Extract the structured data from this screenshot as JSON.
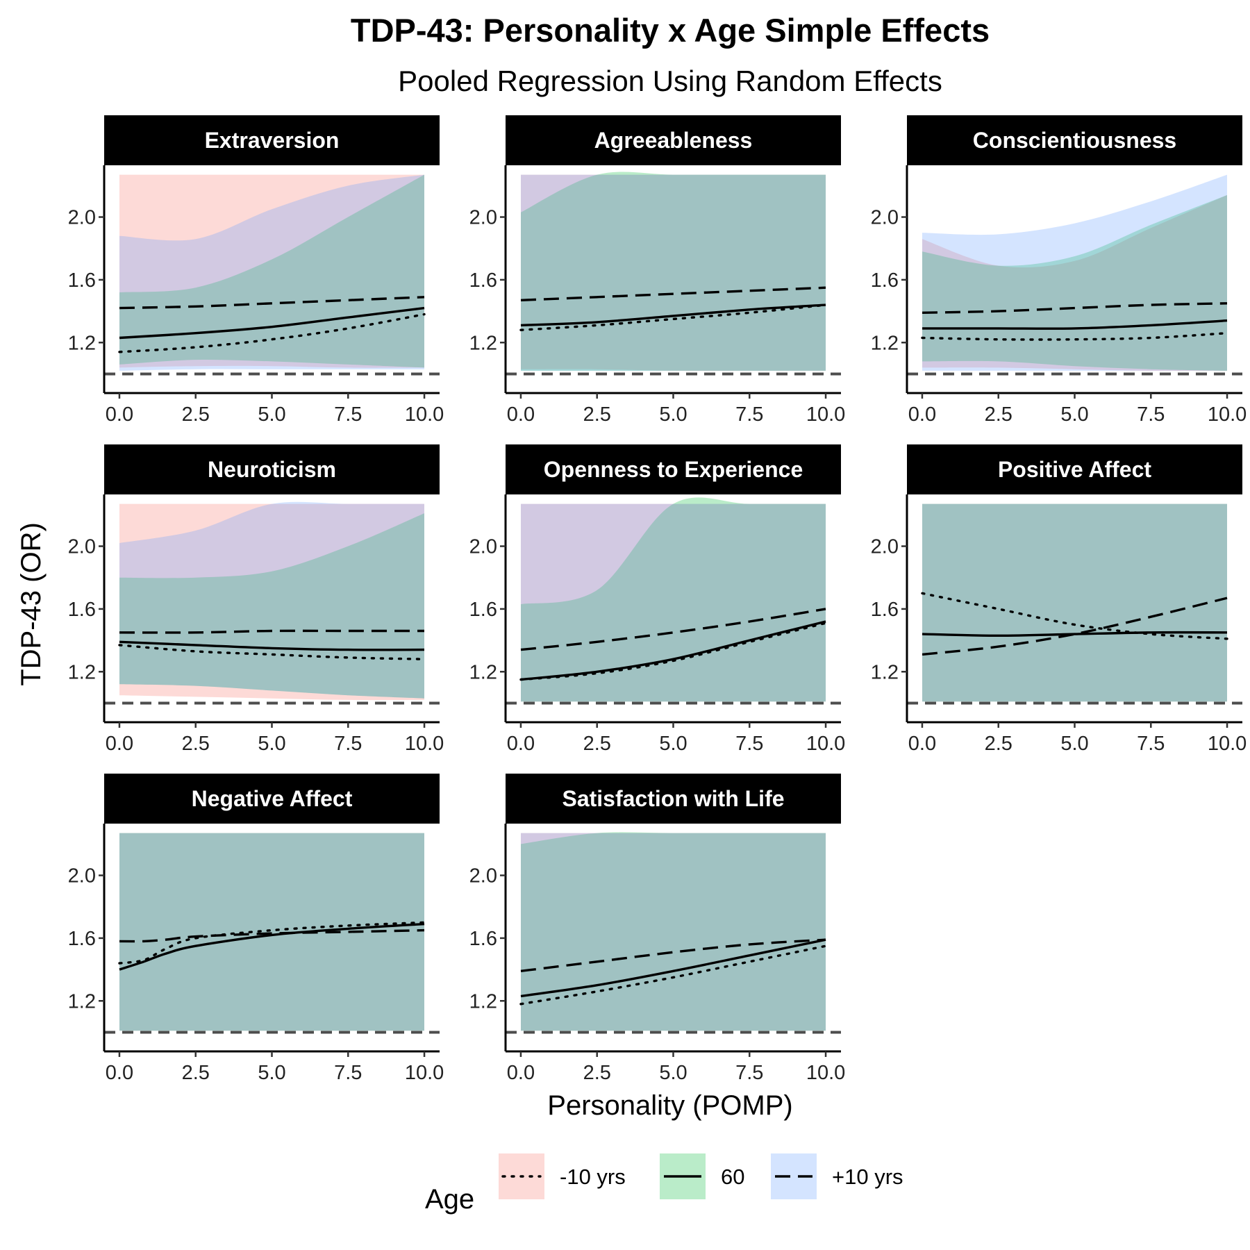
{
  "chart_data": {
    "type": "line",
    "title": "TDP-43: Personality x Age Simple Effects",
    "subtitle": "Pooled Regression Using Random Effects",
    "xlabel": "Personality (POMP)",
    "ylabel": "TDP-43 (OR)",
    "xlim": [
      -0.5,
      10.5
    ],
    "ylim": [
      0.94,
      2.33
    ],
    "xticks": [
      "0.0",
      "2.5",
      "5.0",
      "7.5",
      "10.0"
    ],
    "yticks": [
      "1.2",
      "1.6",
      "2.0"
    ],
    "reference_line": 1.0,
    "grid": false,
    "legend": {
      "title": "Age",
      "position": "bottom",
      "entries": [
        {
          "label": "-10 yrs",
          "linetype": "dotted",
          "fill": "#F8766D"
        },
        {
          "label": "60",
          "linetype": "solid",
          "fill": "#00BA38"
        },
        {
          "label": "+10 yrs",
          "linetype": "dashed",
          "fill": "#619CFF"
        }
      ]
    },
    "panels": [
      {
        "name": "Extraversion",
        "x": [
          0,
          2.5,
          5,
          7.5,
          10
        ],
        "series": [
          {
            "name": "-10 yrs",
            "values": [
              1.14,
              1.17,
              1.22,
              1.29,
              1.38
            ],
            "lower": [
              1.04,
              1.05,
              1.05,
              1.04,
              1.04
            ],
            "upper": [
              2.27,
              2.27,
              2.27,
              2.27,
              2.27
            ]
          },
          {
            "name": "60",
            "values": [
              1.23,
              1.26,
              1.3,
              1.36,
              1.42
            ],
            "lower": [
              1.06,
              1.09,
              1.08,
              1.06,
              1.04
            ],
            "upper": [
              1.52,
              1.55,
              1.73,
              2.0,
              2.27
            ]
          },
          {
            "name": "+10 yrs",
            "values": [
              1.42,
              1.43,
              1.45,
              1.47,
              1.49
            ],
            "lower": [
              1.02,
              1.03,
              1.03,
              1.03,
              1.03
            ],
            "upper": [
              1.88,
              1.86,
              2.05,
              2.2,
              2.27
            ]
          }
        ]
      },
      {
        "name": "Agreeableness",
        "x": [
          0,
          2.5,
          5,
          7.5,
          10
        ],
        "series": [
          {
            "name": "-10 yrs",
            "values": [
              1.28,
              1.31,
              1.35,
              1.39,
              1.44
            ],
            "lower": [
              1.03,
              1.03,
              1.02,
              1.02,
              1.02
            ],
            "upper": [
              2.27,
              2.27,
              2.27,
              2.27,
              2.27
            ]
          },
          {
            "name": "60",
            "values": [
              1.31,
              1.33,
              1.37,
              1.41,
              1.44
            ],
            "lower": [
              1.02,
              1.02,
              1.02,
              1.02,
              1.02
            ],
            "upper": [
              2.03,
              2.27,
              2.27,
              2.27,
              2.27
            ]
          },
          {
            "name": "+10 yrs",
            "values": [
              1.47,
              1.49,
              1.51,
              1.53,
              1.55
            ],
            "lower": [
              1.02,
              1.02,
              1.02,
              1.02,
              1.02
            ],
            "upper": [
              2.27,
              2.27,
              2.27,
              2.27,
              2.27
            ]
          }
        ]
      },
      {
        "name": "Conscientiousness",
        "x": [
          0,
          2.5,
          5,
          7.5,
          10
        ],
        "series": [
          {
            "name": "-10 yrs",
            "values": [
              1.23,
              1.22,
              1.22,
              1.23,
              1.26
            ],
            "lower": [
              1.04,
              1.04,
              1.03,
              1.02,
              1.02
            ],
            "upper": [
              1.86,
              1.69,
              1.72,
              1.93,
              2.14
            ]
          },
          {
            "name": "60",
            "values": [
              1.29,
              1.29,
              1.29,
              1.31,
              1.34
            ],
            "lower": [
              1.08,
              1.08,
              1.05,
              1.03,
              1.02
            ],
            "upper": [
              1.78,
              1.69,
              1.75,
              1.95,
              2.14
            ]
          },
          {
            "name": "+10 yrs",
            "values": [
              1.39,
              1.4,
              1.42,
              1.44,
              1.45
            ],
            "lower": [
              1.02,
              1.02,
              1.02,
              1.02,
              1.02
            ],
            "upper": [
              1.9,
              1.89,
              1.96,
              2.1,
              2.27
            ]
          }
        ]
      },
      {
        "name": "Neuroticism",
        "x": [
          0,
          2.5,
          5,
          7.5,
          10
        ],
        "series": [
          {
            "name": "-10 yrs",
            "values": [
              1.37,
              1.33,
              1.31,
              1.29,
              1.28
            ],
            "lower": [
              1.05,
              1.04,
              1.03,
              1.02,
              1.02
            ],
            "upper": [
              2.27,
              2.27,
              2.27,
              2.27,
              2.27
            ]
          },
          {
            "name": "60",
            "values": [
              1.39,
              1.37,
              1.35,
              1.34,
              1.34
            ],
            "lower": [
              1.12,
              1.11,
              1.08,
              1.05,
              1.03
            ],
            "upper": [
              1.8,
              1.8,
              1.84,
              2.0,
              2.21
            ]
          },
          {
            "name": "+10 yrs",
            "values": [
              1.45,
              1.45,
              1.46,
              1.46,
              1.46
            ],
            "lower": [
              1.12,
              1.11,
              1.08,
              1.05,
              1.03
            ],
            "upper": [
              2.02,
              2.1,
              2.27,
              2.27,
              2.27
            ]
          }
        ]
      },
      {
        "name": "Openness to Experience",
        "x": [
          0,
          2.5,
          5,
          7.5,
          10
        ],
        "series": [
          {
            "name": "-10 yrs",
            "values": [
              1.15,
              1.19,
              1.27,
              1.39,
              1.51
            ],
            "lower": [
              1.01,
              1.01,
              1.01,
              1.01,
              1.01
            ],
            "upper": [
              2.27,
              2.27,
              2.27,
              2.27,
              2.27
            ]
          },
          {
            "name": "60",
            "values": [
              1.15,
              1.2,
              1.28,
              1.4,
              1.52
            ],
            "lower": [
              1.01,
              1.01,
              1.01,
              1.01,
              1.01
            ],
            "upper": [
              1.63,
              1.72,
              2.27,
              2.27,
              2.27
            ]
          },
          {
            "name": "+10 yrs",
            "values": [
              1.34,
              1.39,
              1.45,
              1.52,
              1.6
            ],
            "lower": [
              1.01,
              1.01,
              1.01,
              1.01,
              1.01
            ],
            "upper": [
              2.27,
              2.27,
              2.27,
              2.27,
              2.27
            ]
          }
        ]
      },
      {
        "name": "Positive Affect",
        "x": [
          0,
          2.5,
          5,
          7.5,
          10
        ],
        "series": [
          {
            "name": "-10 yrs",
            "values": [
              1.7,
              1.6,
              1.5,
              1.44,
              1.41
            ],
            "lower": [
              1.01,
              1.01,
              1.01,
              1.01,
              1.01
            ],
            "upper": [
              2.27,
              2.27,
              2.27,
              2.27,
              2.27
            ]
          },
          {
            "name": "60",
            "values": [
              1.44,
              1.43,
              1.44,
              1.45,
              1.45
            ],
            "lower": [
              1.01,
              1.01,
              1.01,
              1.01,
              1.01
            ],
            "upper": [
              2.27,
              2.27,
              2.27,
              2.27,
              2.27
            ]
          },
          {
            "name": "+10 yrs",
            "values": [
              1.31,
              1.36,
              1.44,
              1.55,
              1.67
            ],
            "lower": [
              1.01,
              1.01,
              1.01,
              1.01,
              1.01
            ],
            "upper": [
              2.27,
              2.27,
              2.27,
              2.27,
              2.27
            ]
          }
        ]
      },
      {
        "name": "Negative Affect",
        "x": [
          0,
          0.8,
          1.5,
          2.5,
          5,
          7.5,
          10
        ],
        "series": [
          {
            "name": "-10 yrs",
            "values": [
              1.44,
              1.46,
              1.53,
              1.6,
              1.65,
              1.68,
              1.7
            ],
            "lower": [
              1.01,
              1.01,
              1.01,
              1.01,
              1.01,
              1.01,
              1.01
            ],
            "upper": [
              2.27,
              2.27,
              2.27,
              2.27,
              2.27,
              2.27,
              2.27
            ]
          },
          {
            "name": "60",
            "values": [
              1.4,
              1.45,
              1.5,
              1.55,
              1.62,
              1.66,
              1.69
            ],
            "lower": [
              1.01,
              1.01,
              1.01,
              1.01,
              1.01,
              1.01,
              1.01
            ],
            "upper": [
              2.27,
              2.27,
              2.27,
              2.27,
              2.27,
              2.27,
              2.27
            ]
          },
          {
            "name": "+10 yrs",
            "values": [
              1.58,
              1.58,
              1.59,
              1.61,
              1.63,
              1.64,
              1.65
            ],
            "lower": [
              1.01,
              1.01,
              1.01,
              1.01,
              1.01,
              1.01,
              1.01
            ],
            "upper": [
              2.27,
              2.27,
              2.27,
              2.27,
              2.27,
              2.27,
              2.27
            ]
          }
        ]
      },
      {
        "name": "Satisfaction with Life",
        "x": [
          0,
          2.5,
          5,
          7.5,
          10
        ],
        "series": [
          {
            "name": "-10 yrs",
            "values": [
              1.18,
              1.26,
              1.35,
              1.45,
              1.55
            ],
            "lower": [
              1.01,
              1.01,
              1.01,
              1.01,
              1.01
            ],
            "upper": [
              2.27,
              2.27,
              2.27,
              2.27,
              2.27
            ]
          },
          {
            "name": "60",
            "values": [
              1.23,
              1.3,
              1.39,
              1.49,
              1.59
            ],
            "lower": [
              1.01,
              1.01,
              1.01,
              1.01,
              1.01
            ],
            "upper": [
              2.2,
              2.27,
              2.27,
              2.27,
              2.27
            ]
          },
          {
            "name": "+10 yrs",
            "values": [
              1.39,
              1.45,
              1.51,
              1.56,
              1.59
            ],
            "lower": [
              1.01,
              1.01,
              1.01,
              1.01,
              1.01
            ],
            "upper": [
              2.27,
              2.27,
              2.27,
              2.27,
              2.27
            ]
          }
        ]
      }
    ]
  }
}
